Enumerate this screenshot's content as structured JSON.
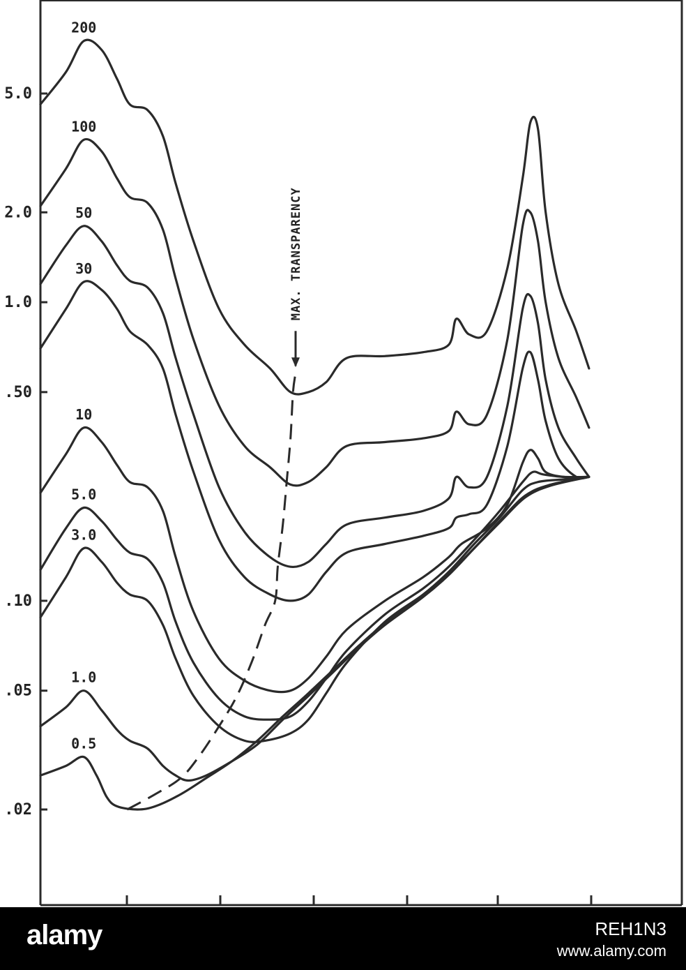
{
  "chart_data": {
    "type": "line",
    "title": "",
    "xlabel": "",
    "ylabel": "",
    "y_scale": "log",
    "ylim": [
      0.012,
      7.0
    ],
    "y_ticks": [
      {
        "label": "5.0",
        "value": 5.0
      },
      {
        "label": "2.0",
        "value": 2.0
      },
      {
        "label": "1.0",
        "value": 1.0
      },
      {
        "label": ".50",
        "value": 0.5
      },
      {
        "label": ".10",
        "value": 0.1
      },
      {
        "label": ".05",
        "value": 0.05
      },
      {
        "label": ".02",
        "value": 0.02
      }
    ],
    "x_tick_count": 6,
    "annotation": "MAX. TRANSPARENCY",
    "grid": false,
    "series": [
      {
        "name": "200",
        "label": "200",
        "values": [
          [
            0,
            4.6
          ],
          [
            0.1,
            5.9
          ],
          [
            0.17,
            7.5
          ],
          [
            0.24,
            7.0
          ],
          [
            0.3,
            5.6
          ],
          [
            0.35,
            4.6
          ],
          [
            0.42,
            4.4
          ],
          [
            0.48,
            3.6
          ],
          [
            0.53,
            2.5
          ],
          [
            0.6,
            1.6
          ],
          [
            0.7,
            0.95
          ],
          [
            0.8,
            0.72
          ],
          [
            0.9,
            0.6
          ],
          [
            0.98,
            0.5
          ],
          [
            1.05,
            0.5
          ],
          [
            1.12,
            0.54
          ],
          [
            1.2,
            0.65
          ],
          [
            1.35,
            0.66
          ],
          [
            1.5,
            0.68
          ],
          [
            1.6,
            0.72
          ],
          [
            1.63,
            0.88
          ],
          [
            1.68,
            0.78
          ],
          [
            1.75,
            0.8
          ],
          [
            1.83,
            1.3
          ],
          [
            1.89,
            2.6
          ],
          [
            1.92,
            4.0
          ],
          [
            1.95,
            3.8
          ],
          [
            1.98,
            2.0
          ],
          [
            2.03,
            1.15
          ],
          [
            2.1,
            0.8
          ],
          [
            2.15,
            0.6
          ]
        ]
      },
      {
        "name": "100",
        "label": "100",
        "values": [
          [
            0,
            2.1
          ],
          [
            0.1,
            2.8
          ],
          [
            0.17,
            3.5
          ],
          [
            0.24,
            3.2
          ],
          [
            0.3,
            2.6
          ],
          [
            0.35,
            2.25
          ],
          [
            0.42,
            2.15
          ],
          [
            0.48,
            1.75
          ],
          [
            0.53,
            1.2
          ],
          [
            0.6,
            0.75
          ],
          [
            0.7,
            0.45
          ],
          [
            0.8,
            0.33
          ],
          [
            0.9,
            0.28
          ],
          [
            0.98,
            0.245
          ],
          [
            1.05,
            0.25
          ],
          [
            1.12,
            0.28
          ],
          [
            1.2,
            0.33
          ],
          [
            1.35,
            0.34
          ],
          [
            1.5,
            0.35
          ],
          [
            1.6,
            0.37
          ],
          [
            1.63,
            0.43
          ],
          [
            1.68,
            0.39
          ],
          [
            1.75,
            0.42
          ],
          [
            1.83,
            0.75
          ],
          [
            1.89,
            1.8
          ],
          [
            1.92,
            2.0
          ],
          [
            1.95,
            1.6
          ],
          [
            1.98,
            1.0
          ],
          [
            2.03,
            0.65
          ],
          [
            2.1,
            0.48
          ],
          [
            2.15,
            0.38
          ]
        ]
      },
      {
        "name": "50",
        "label": "50",
        "values": [
          [
            0,
            1.15
          ],
          [
            0.1,
            1.55
          ],
          [
            0.17,
            1.8
          ],
          [
            0.24,
            1.6
          ],
          [
            0.3,
            1.33
          ],
          [
            0.35,
            1.18
          ],
          [
            0.42,
            1.12
          ],
          [
            0.48,
            0.92
          ],
          [
            0.53,
            0.65
          ],
          [
            0.6,
            0.42
          ],
          [
            0.7,
            0.24
          ],
          [
            0.8,
            0.17
          ],
          [
            0.9,
            0.14
          ],
          [
            0.98,
            0.13
          ],
          [
            1.05,
            0.135
          ],
          [
            1.12,
            0.155
          ],
          [
            1.2,
            0.18
          ],
          [
            1.35,
            0.19
          ],
          [
            1.5,
            0.2
          ],
          [
            1.6,
            0.22
          ],
          [
            1.63,
            0.26
          ],
          [
            1.68,
            0.24
          ],
          [
            1.75,
            0.26
          ],
          [
            1.83,
            0.45
          ],
          [
            1.89,
            0.95
          ],
          [
            1.92,
            1.05
          ],
          [
            1.95,
            0.85
          ],
          [
            1.98,
            0.55
          ],
          [
            2.03,
            0.38
          ],
          [
            2.1,
            0.3
          ],
          [
            2.15,
            0.26
          ]
        ]
      },
      {
        "name": "30",
        "label": "30",
        "values": [
          [
            0,
            0.7
          ],
          [
            0.1,
            0.95
          ],
          [
            0.17,
            1.17
          ],
          [
            0.24,
            1.1
          ],
          [
            0.3,
            0.95
          ],
          [
            0.35,
            0.8
          ],
          [
            0.42,
            0.72
          ],
          [
            0.48,
            0.6
          ],
          [
            0.53,
            0.42
          ],
          [
            0.6,
            0.27
          ],
          [
            0.7,
            0.16
          ],
          [
            0.8,
            0.12
          ],
          [
            0.9,
            0.105
          ],
          [
            0.98,
            0.1
          ],
          [
            1.05,
            0.105
          ],
          [
            1.12,
            0.125
          ],
          [
            1.2,
            0.145
          ],
          [
            1.35,
            0.155
          ],
          [
            1.5,
            0.165
          ],
          [
            1.6,
            0.175
          ],
          [
            1.63,
            0.19
          ],
          [
            1.68,
            0.195
          ],
          [
            1.75,
            0.21
          ],
          [
            1.83,
            0.33
          ],
          [
            1.89,
            0.6
          ],
          [
            1.92,
            0.68
          ],
          [
            1.95,
            0.55
          ],
          [
            1.98,
            0.4
          ],
          [
            2.03,
            0.3
          ],
          [
            2.1,
            0.26
          ],
          [
            2.15,
            0.26
          ]
        ]
      },
      {
        "name": "10",
        "label": "10",
        "values": [
          [
            0,
            0.23
          ],
          [
            0.1,
            0.31
          ],
          [
            0.17,
            0.38
          ],
          [
            0.24,
            0.34
          ],
          [
            0.3,
            0.285
          ],
          [
            0.35,
            0.25
          ],
          [
            0.42,
            0.24
          ],
          [
            0.48,
            0.2
          ],
          [
            0.53,
            0.14
          ],
          [
            0.6,
            0.092
          ],
          [
            0.7,
            0.064
          ],
          [
            0.8,
            0.054
          ],
          [
            0.9,
            0.05
          ],
          [
            0.98,
            0.05
          ],
          [
            1.05,
            0.055
          ],
          [
            1.12,
            0.065
          ],
          [
            1.2,
            0.08
          ],
          [
            1.35,
            0.1
          ],
          [
            1.5,
            0.12
          ],
          [
            1.6,
            0.14
          ],
          [
            1.65,
            0.155
          ],
          [
            1.75,
            0.175
          ],
          [
            1.83,
            0.21
          ],
          [
            1.89,
            0.29
          ],
          [
            1.92,
            0.32
          ],
          [
            1.95,
            0.3
          ],
          [
            1.98,
            0.27
          ],
          [
            2.05,
            0.26
          ],
          [
            2.15,
            0.26
          ]
        ]
      },
      {
        "name": "5.0",
        "label": "5.0",
        "values": [
          [
            0,
            0.127
          ],
          [
            0.1,
            0.175
          ],
          [
            0.17,
            0.205
          ],
          [
            0.24,
            0.185
          ],
          [
            0.3,
            0.16
          ],
          [
            0.35,
            0.145
          ],
          [
            0.42,
            0.138
          ],
          [
            0.48,
            0.115
          ],
          [
            0.53,
            0.085
          ],
          [
            0.6,
            0.062
          ],
          [
            0.7,
            0.047
          ],
          [
            0.8,
            0.041
          ],
          [
            0.9,
            0.04
          ],
          [
            0.98,
            0.041
          ],
          [
            1.05,
            0.046
          ],
          [
            1.12,
            0.055
          ],
          [
            1.2,
            0.068
          ],
          [
            1.35,
            0.09
          ],
          [
            1.5,
            0.11
          ],
          [
            1.6,
            0.13
          ],
          [
            1.7,
            0.16
          ],
          [
            1.8,
            0.2
          ],
          [
            1.89,
            0.25
          ],
          [
            1.93,
            0.27
          ],
          [
            1.97,
            0.265
          ],
          [
            2.05,
            0.26
          ],
          [
            2.15,
            0.26
          ]
        ]
      },
      {
        "name": "3.0",
        "label": "3.0",
        "values": [
          [
            0,
            0.088
          ],
          [
            0.1,
            0.12
          ],
          [
            0.17,
            0.15
          ],
          [
            0.24,
            0.135
          ],
          [
            0.3,
            0.115
          ],
          [
            0.35,
            0.105
          ],
          [
            0.42,
            0.1
          ],
          [
            0.48,
            0.083
          ],
          [
            0.53,
            0.064
          ],
          [
            0.6,
            0.048
          ],
          [
            0.7,
            0.038
          ],
          [
            0.8,
            0.034
          ],
          [
            0.88,
            0.034
          ],
          [
            0.98,
            0.036
          ],
          [
            1.05,
            0.04
          ],
          [
            1.12,
            0.049
          ],
          [
            1.2,
            0.062
          ],
          [
            1.35,
            0.085
          ],
          [
            1.5,
            0.105
          ],
          [
            1.6,
            0.125
          ],
          [
            1.7,
            0.155
          ],
          [
            1.8,
            0.19
          ],
          [
            1.89,
            0.235
          ],
          [
            1.95,
            0.25
          ],
          [
            2.05,
            0.255
          ],
          [
            2.15,
            0.26
          ]
        ]
      },
      {
        "name": "1.0",
        "label": "1.0",
        "values": [
          [
            0,
            0.038
          ],
          [
            0.1,
            0.044
          ],
          [
            0.17,
            0.05
          ],
          [
            0.24,
            0.043
          ],
          [
            0.3,
            0.037
          ],
          [
            0.35,
            0.034
          ],
          [
            0.42,
            0.032
          ],
          [
            0.48,
            0.028
          ],
          [
            0.53,
            0.026
          ],
          [
            0.58,
            0.025
          ],
          [
            0.65,
            0.026
          ],
          [
            0.75,
            0.029
          ],
          [
            0.85,
            0.033
          ],
          [
            0.95,
            0.04
          ],
          [
            1.05,
            0.048
          ],
          [
            1.15,
            0.058
          ],
          [
            1.25,
            0.07
          ],
          [
            1.35,
            0.083
          ],
          [
            1.5,
            0.103
          ],
          [
            1.6,
            0.122
          ],
          [
            1.7,
            0.15
          ],
          [
            1.8,
            0.185
          ],
          [
            1.9,
            0.225
          ],
          [
            2.0,
            0.245
          ],
          [
            2.15,
            0.26
          ]
        ]
      },
      {
        "name": "0.5",
        "label": "0.5",
        "values": [
          [
            0,
            0.026
          ],
          [
            0.1,
            0.028
          ],
          [
            0.17,
            0.03
          ],
          [
            0.22,
            0.026
          ],
          [
            0.26,
            0.022
          ],
          [
            0.3,
            0.0205
          ],
          [
            0.38,
            0.02
          ],
          [
            0.45,
            0.0205
          ],
          [
            0.55,
            0.0225
          ],
          [
            0.65,
            0.0255
          ],
          [
            0.75,
            0.029
          ],
          [
            0.85,
            0.034
          ],
          [
            0.95,
            0.041
          ],
          [
            1.05,
            0.049
          ],
          [
            1.15,
            0.059
          ],
          [
            1.25,
            0.071
          ],
          [
            1.35,
            0.084
          ],
          [
            1.5,
            0.104
          ],
          [
            1.6,
            0.123
          ],
          [
            1.7,
            0.15
          ],
          [
            1.8,
            0.183
          ],
          [
            1.9,
            0.222
          ],
          [
            2.0,
            0.243
          ],
          [
            2.15,
            0.26
          ]
        ]
      }
    ],
    "max_transparency_line": [
      [
        0.34,
        0.02
      ],
      [
        0.45,
        0.0225
      ],
      [
        0.55,
        0.0255
      ],
      [
        0.62,
        0.03
      ],
      [
        0.7,
        0.038
      ],
      [
        0.77,
        0.048
      ],
      [
        0.83,
        0.063
      ],
      [
        0.88,
        0.083
      ],
      [
        0.92,
        0.1
      ],
      [
        0.93,
        0.13
      ],
      [
        0.95,
        0.18
      ],
      [
        0.965,
        0.25
      ],
      [
        0.98,
        0.35
      ],
      [
        0.99,
        0.5
      ],
      [
        1.0,
        0.58
      ]
    ]
  }
}
